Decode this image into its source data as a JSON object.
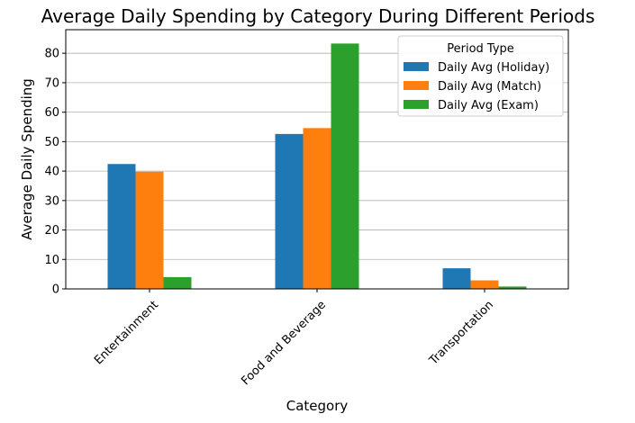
{
  "chart_data": {
    "type": "bar",
    "title": "Average Daily Spending by Category During Different Periods",
    "xlabel": "Category",
    "ylabel": "Average Daily Spending",
    "categories": [
      "Entertainment",
      "Food and Beverage",
      "Transportation"
    ],
    "series": [
      {
        "name": "Daily Avg (Holiday)",
        "color": "#1f77b4",
        "values": [
          42.4,
          52.6,
          7.0
        ]
      },
      {
        "name": "Daily Avg (Match)",
        "color": "#ff7f0e",
        "values": [
          39.8,
          54.6,
          2.9
        ]
      },
      {
        "name": "Daily Avg (Exam)",
        "color": "#2ca02c",
        "values": [
          4.0,
          83.3,
          0.8
        ]
      }
    ],
    "ylim": [
      0,
      88
    ],
    "yticks": [
      0,
      10,
      20,
      30,
      40,
      50,
      60,
      70,
      80
    ],
    "grid": "y",
    "legend": {
      "title": "Period Type",
      "position": "top-right"
    }
  }
}
